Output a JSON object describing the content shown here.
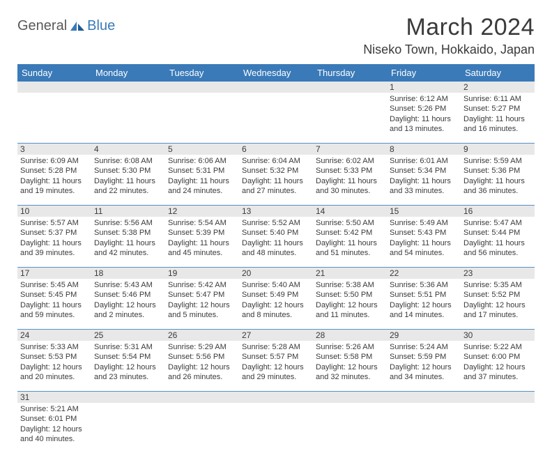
{
  "logo": {
    "main": "General",
    "sub": "Blue"
  },
  "title": "March 2024",
  "location": "Niseko Town, Hokkaido, Japan",
  "dayHeaders": [
    "Sunday",
    "Monday",
    "Tuesday",
    "Wednesday",
    "Thursday",
    "Friday",
    "Saturday"
  ],
  "colors": {
    "header_bg": "#3a7ab8",
    "daynum_bg": "#e8e8e8",
    "border": "#5b8fc2",
    "text": "#3a3a3a",
    "logo_blue": "#3a7ab8",
    "logo_gray": "#58595b"
  },
  "weeks": [
    {
      "days": [
        {
          "num": "",
          "lines": []
        },
        {
          "num": "",
          "lines": []
        },
        {
          "num": "",
          "lines": []
        },
        {
          "num": "",
          "lines": []
        },
        {
          "num": "",
          "lines": []
        },
        {
          "num": "1",
          "lines": [
            "Sunrise: 6:12 AM",
            "Sunset: 5:26 PM",
            "Daylight: 11 hours",
            "and 13 minutes."
          ]
        },
        {
          "num": "2",
          "lines": [
            "Sunrise: 6:11 AM",
            "Sunset: 5:27 PM",
            "Daylight: 11 hours",
            "and 16 minutes."
          ]
        }
      ]
    },
    {
      "days": [
        {
          "num": "3",
          "lines": [
            "Sunrise: 6:09 AM",
            "Sunset: 5:28 PM",
            "Daylight: 11 hours",
            "and 19 minutes."
          ]
        },
        {
          "num": "4",
          "lines": [
            "Sunrise: 6:08 AM",
            "Sunset: 5:30 PM",
            "Daylight: 11 hours",
            "and 22 minutes."
          ]
        },
        {
          "num": "5",
          "lines": [
            "Sunrise: 6:06 AM",
            "Sunset: 5:31 PM",
            "Daylight: 11 hours",
            "and 24 minutes."
          ]
        },
        {
          "num": "6",
          "lines": [
            "Sunrise: 6:04 AM",
            "Sunset: 5:32 PM",
            "Daylight: 11 hours",
            "and 27 minutes."
          ]
        },
        {
          "num": "7",
          "lines": [
            "Sunrise: 6:02 AM",
            "Sunset: 5:33 PM",
            "Daylight: 11 hours",
            "and 30 minutes."
          ]
        },
        {
          "num": "8",
          "lines": [
            "Sunrise: 6:01 AM",
            "Sunset: 5:34 PM",
            "Daylight: 11 hours",
            "and 33 minutes."
          ]
        },
        {
          "num": "9",
          "lines": [
            "Sunrise: 5:59 AM",
            "Sunset: 5:36 PM",
            "Daylight: 11 hours",
            "and 36 minutes."
          ]
        }
      ]
    },
    {
      "days": [
        {
          "num": "10",
          "lines": [
            "Sunrise: 5:57 AM",
            "Sunset: 5:37 PM",
            "Daylight: 11 hours",
            "and 39 minutes."
          ]
        },
        {
          "num": "11",
          "lines": [
            "Sunrise: 5:56 AM",
            "Sunset: 5:38 PM",
            "Daylight: 11 hours",
            "and 42 minutes."
          ]
        },
        {
          "num": "12",
          "lines": [
            "Sunrise: 5:54 AM",
            "Sunset: 5:39 PM",
            "Daylight: 11 hours",
            "and 45 minutes."
          ]
        },
        {
          "num": "13",
          "lines": [
            "Sunrise: 5:52 AM",
            "Sunset: 5:40 PM",
            "Daylight: 11 hours",
            "and 48 minutes."
          ]
        },
        {
          "num": "14",
          "lines": [
            "Sunrise: 5:50 AM",
            "Sunset: 5:42 PM",
            "Daylight: 11 hours",
            "and 51 minutes."
          ]
        },
        {
          "num": "15",
          "lines": [
            "Sunrise: 5:49 AM",
            "Sunset: 5:43 PM",
            "Daylight: 11 hours",
            "and 54 minutes."
          ]
        },
        {
          "num": "16",
          "lines": [
            "Sunrise: 5:47 AM",
            "Sunset: 5:44 PM",
            "Daylight: 11 hours",
            "and 56 minutes."
          ]
        }
      ]
    },
    {
      "days": [
        {
          "num": "17",
          "lines": [
            "Sunrise: 5:45 AM",
            "Sunset: 5:45 PM",
            "Daylight: 11 hours",
            "and 59 minutes."
          ]
        },
        {
          "num": "18",
          "lines": [
            "Sunrise: 5:43 AM",
            "Sunset: 5:46 PM",
            "Daylight: 12 hours",
            "and 2 minutes."
          ]
        },
        {
          "num": "19",
          "lines": [
            "Sunrise: 5:42 AM",
            "Sunset: 5:47 PM",
            "Daylight: 12 hours",
            "and 5 minutes."
          ]
        },
        {
          "num": "20",
          "lines": [
            "Sunrise: 5:40 AM",
            "Sunset: 5:49 PM",
            "Daylight: 12 hours",
            "and 8 minutes."
          ]
        },
        {
          "num": "21",
          "lines": [
            "Sunrise: 5:38 AM",
            "Sunset: 5:50 PM",
            "Daylight: 12 hours",
            "and 11 minutes."
          ]
        },
        {
          "num": "22",
          "lines": [
            "Sunrise: 5:36 AM",
            "Sunset: 5:51 PM",
            "Daylight: 12 hours",
            "and 14 minutes."
          ]
        },
        {
          "num": "23",
          "lines": [
            "Sunrise: 5:35 AM",
            "Sunset: 5:52 PM",
            "Daylight: 12 hours",
            "and 17 minutes."
          ]
        }
      ]
    },
    {
      "days": [
        {
          "num": "24",
          "lines": [
            "Sunrise: 5:33 AM",
            "Sunset: 5:53 PM",
            "Daylight: 12 hours",
            "and 20 minutes."
          ]
        },
        {
          "num": "25",
          "lines": [
            "Sunrise: 5:31 AM",
            "Sunset: 5:54 PM",
            "Daylight: 12 hours",
            "and 23 minutes."
          ]
        },
        {
          "num": "26",
          "lines": [
            "Sunrise: 5:29 AM",
            "Sunset: 5:56 PM",
            "Daylight: 12 hours",
            "and 26 minutes."
          ]
        },
        {
          "num": "27",
          "lines": [
            "Sunrise: 5:28 AM",
            "Sunset: 5:57 PM",
            "Daylight: 12 hours",
            "and 29 minutes."
          ]
        },
        {
          "num": "28",
          "lines": [
            "Sunrise: 5:26 AM",
            "Sunset: 5:58 PM",
            "Daylight: 12 hours",
            "and 32 minutes."
          ]
        },
        {
          "num": "29",
          "lines": [
            "Sunrise: 5:24 AM",
            "Sunset: 5:59 PM",
            "Daylight: 12 hours",
            "and 34 minutes."
          ]
        },
        {
          "num": "30",
          "lines": [
            "Sunrise: 5:22 AM",
            "Sunset: 6:00 PM",
            "Daylight: 12 hours",
            "and 37 minutes."
          ]
        }
      ]
    },
    {
      "days": [
        {
          "num": "31",
          "lines": [
            "Sunrise: 5:21 AM",
            "Sunset: 6:01 PM",
            "Daylight: 12 hours",
            "and 40 minutes."
          ]
        },
        {
          "num": "",
          "lines": []
        },
        {
          "num": "",
          "lines": []
        },
        {
          "num": "",
          "lines": []
        },
        {
          "num": "",
          "lines": []
        },
        {
          "num": "",
          "lines": []
        },
        {
          "num": "",
          "lines": []
        }
      ]
    }
  ]
}
